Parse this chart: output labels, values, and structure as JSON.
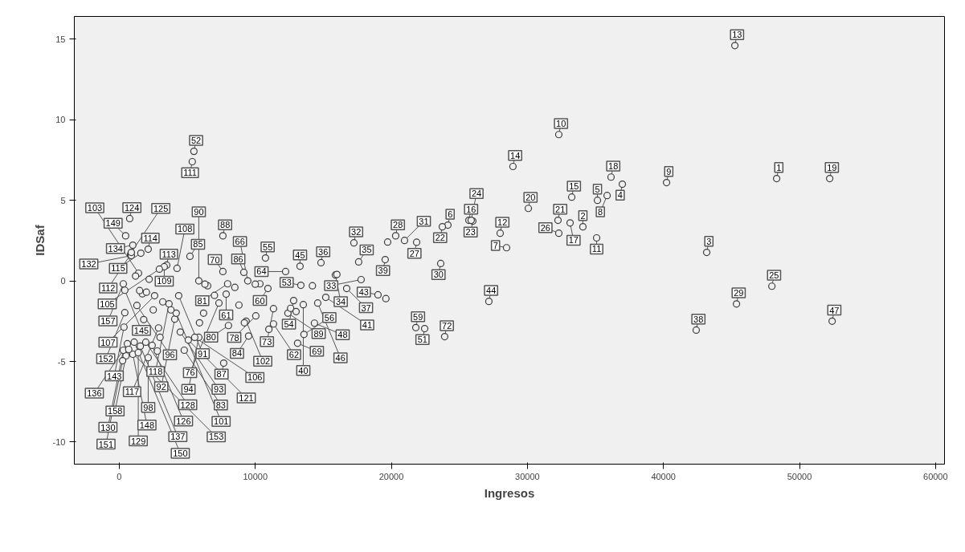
{
  "chart_data": {
    "type": "scatter",
    "xlabel": "Ingresos",
    "ylabel": "IDSaf",
    "xlim": [
      -3300,
      60660
    ],
    "ylim": [
      -11.37,
      16.41
    ],
    "xticks": [
      0,
      10000,
      20000,
      30000,
      40000,
      50000,
      60000
    ],
    "yticks": [
      -10,
      -5,
      0,
      5,
      10,
      15
    ],
    "grid": false,
    "marker": "circle",
    "series": [
      {
        "color": "#3c3c3c",
        "x": [
          45250,
          52220,
          48320,
          40230,
          43180,
          45370,
          47970,
          42410,
          52400,
          32310,
          28940,
          30070,
          36150,
          36980,
          33260,
          35150,
          35860,
          34080,
          32250,
          33140,
          32310,
          35090,
          28470,
          28000,
          24160,
          23750,
          25700,
          25990,
          25870,
          20320,
          21860,
          20970,
          19550,
          19730,
          23630,
          27170,
          19020,
          21800,
          22450,
          23920,
          17250,
          14830,
          13290,
          17600,
          17780,
          15890,
          16720,
          13350,
          10750,
          12230,
          10930,
          12820,
          7620,
          9160,
          9450,
          7620,
          7970,
          7860,
          11340,
          10040,
          8030,
          9510,
          9330,
          7680,
          12400,
          11340,
          13110,
          13580,
          14350,
          13530,
          15180,
          14590,
          5490,
          5370,
          770,
          470,
          2130,
          1000,
          3490,
          1590,
          3310,
          5200,
          4250,
          830,
          890,
          890,
          2950,
          5850,
          300,
          1420,
          410,
          2600,
          4370,
          1300,
          410,
          3660,
          7330,
          4080,
          5850,
          350,
          2890,
          4490,
          2130,
          600,
          500,
          300,
          1000,
          1950,
          2420,
          4780,
          5550,
          1400,
          5080,
          4190,
          1550,
          250,
          1100,
          700,
          10340,
          16000,
          11000,
          12600,
          13000,
          6500,
          6300,
          7000,
          6200,
          2200,
          1700,
          1500,
          2000,
          1200,
          2500,
          3200,
          3800,
          1800,
          2800,
          3000,
          5900,
          8500,
          8800,
          9200,
          14200,
          19600,
          10000
        ],
        "values": [
          14.6,
          6.35,
          6.35,
          6.1,
          1.77,
          -1.43,
          -0.33,
          -3.05,
          -2.5,
          9.08,
          7.1,
          4.5,
          6.44,
          6.0,
          5.2,
          5.0,
          5.3,
          3.36,
          3.76,
          3.6,
          2.96,
          2.67,
          2.06,
          2.96,
          3.46,
          3.36,
          3.76,
          3.71,
          3.76,
          2.8,
          2.4,
          2.51,
          1.32,
          2.41,
          1.08,
          -1.27,
          -0.86,
          -2.9,
          -2.96,
          -3.46,
          2.36,
          1.13,
          0.91,
          1.18,
          0.08,
          0.37,
          -0.47,
          -0.27,
          1.42,
          0.58,
          -0.47,
          -1.22,
          2.8,
          0.53,
          0,
          0.58,
          -0.18,
          -0.82,
          -1.72,
          -2.17,
          -2.77,
          -3.42,
          -2.5,
          -5.1,
          -2.0,
          -2.67,
          -3.87,
          -3.32,
          -2.62,
          -1.47,
          -1.02,
          -1.37,
          8.04,
          7.4,
          3.87,
          2.8,
          1.97,
          2.22,
          0.98,
          1.72,
          0.88,
          1.53,
          0.78,
          1.63,
          1.57,
          1.77,
          0.73,
          0,
          -0.18,
          0.48,
          -0.58,
          -0.92,
          -0.92,
          -1.52,
          -1.97,
          -1.42,
          -1.37,
          -2.37,
          -3.5,
          -2.87,
          -2.92,
          -3.17,
          -4.76,
          -3.9,
          -4.65,
          -4.3,
          -4.55,
          -3.8,
          -4.0,
          -4.3,
          -3.5,
          -4.45,
          -3.67,
          -2.0,
          -4.05,
          -4.95,
          -3.8,
          -4.25,
          -0.18,
          0.4,
          -3.0,
          -1.7,
          -1.9,
          -0.3,
          -0.2,
          -0.9,
          -2.0,
          0.1,
          -0.8,
          -0.6,
          -0.7,
          0.3,
          -1.8,
          -1.3,
          -1.8,
          -2.4,
          -4.35,
          -3.5,
          -2.6,
          -0.4,
          -1.5,
          -2.6,
          -0.3,
          -1.1,
          -0.2
        ]
      }
    ],
    "annotations": [
      {
        "text": "13",
        "x": 45250,
        "y": 14.6
      },
      {
        "text": "19",
        "x": 52220,
        "y": 6.35
      },
      {
        "text": "1",
        "x": 48320,
        "y": 6.35
      },
      {
        "text": "9",
        "x": 40230,
        "y": 6.1
      },
      {
        "text": "3",
        "x": 43180,
        "y": 1.77
      },
      {
        "text": "29",
        "x": 45370,
        "y": -1.43
      },
      {
        "text": "25",
        "x": 47970,
        "y": -0.33
      },
      {
        "text": "38",
        "x": 42410,
        "y": -3.05
      },
      {
        "text": "47",
        "x": 52400,
        "y": -2.5
      },
      {
        "text": "10",
        "x": 32310,
        "y": 9.08
      },
      {
        "text": "14",
        "x": 28940,
        "y": 7.1
      },
      {
        "text": "20",
        "x": 30070,
        "y": 4.5
      },
      {
        "text": "18",
        "x": 36150,
        "y": 6.44
      },
      {
        "text": "4",
        "x": 36980,
        "y": 6.0
      },
      {
        "text": "15",
        "x": 33260,
        "y": 5.2
      },
      {
        "text": "5",
        "x": 35150,
        "y": 5.0
      },
      {
        "text": "8",
        "x": 35860,
        "y": 5.3
      },
      {
        "text": "2",
        "x": 34080,
        "y": 3.36
      },
      {
        "text": "21",
        "x": 32250,
        "y": 3.76
      },
      {
        "text": "17",
        "x": 33140,
        "y": 3.6
      },
      {
        "text": "26",
        "x": 32310,
        "y": 2.96
      },
      {
        "text": "11",
        "x": 35090,
        "y": 2.67
      },
      {
        "text": "7",
        "x": 28470,
        "y": 2.06
      },
      {
        "text": "12",
        "x": 28000,
        "y": 2.96
      },
      {
        "text": "6",
        "x": 24160,
        "y": 3.46
      },
      {
        "text": "22",
        "x": 23750,
        "y": 3.36
      },
      {
        "text": "16",
        "x": 25700,
        "y": 3.76
      },
      {
        "text": "23",
        "x": 25990,
        "y": 3.71
      },
      {
        "text": "24",
        "x": 25870,
        "y": 3.76
      },
      {
        "text": "28",
        "x": 20320,
        "y": 2.8
      },
      {
        "text": "27",
        "x": 21860,
        "y": 2.4
      },
      {
        "text": "31",
        "x": 20970,
        "y": 2.51
      },
      {
        "text": "39",
        "x": 19550,
        "y": 1.32
      },
      {
        "text": "30",
        "x": 23630,
        "y": 1.08
      },
      {
        "text": "44",
        "x": 27170,
        "y": -1.27
      },
      {
        "text": "43",
        "x": 19020,
        "y": -0.86
      },
      {
        "text": "59",
        "x": 21800,
        "y": -2.9
      },
      {
        "text": "51",
        "x": 22450,
        "y": -2.96
      },
      {
        "text": "72",
        "x": 23920,
        "y": -3.46
      },
      {
        "text": "32",
        "x": 17250,
        "y": 2.36
      },
      {
        "text": "36",
        "x": 14830,
        "y": 1.13
      },
      {
        "text": "45",
        "x": 13290,
        "y": 0.91
      },
      {
        "text": "35",
        "x": 17600,
        "y": 1.18
      },
      {
        "text": "33",
        "x": 17780,
        "y": 0.08
      },
      {
        "text": "34",
        "x": 15890,
        "y": 0.37
      },
      {
        "text": "37",
        "x": 16720,
        "y": -0.47
      },
      {
        "text": "53",
        "x": 13350,
        "y": -0.27
      },
      {
        "text": "55",
        "x": 10750,
        "y": 1.42
      },
      {
        "text": "64",
        "x": 12230,
        "y": 0.58
      },
      {
        "text": "60",
        "x": 10930,
        "y": -0.47
      },
      {
        "text": "54",
        "x": 12820,
        "y": -1.22
      },
      {
        "text": "88",
        "x": 7620,
        "y": 2.8
      },
      {
        "text": "86",
        "x": 9160,
        "y": 0.53
      },
      {
        "text": "66",
        "x": 9450,
        "y": 0
      },
      {
        "text": "70",
        "x": 7620,
        "y": 0.58
      },
      {
        "text": "81",
        "x": 7970,
        "y": -0.18
      },
      {
        "text": "61",
        "x": 7860,
        "y": -0.82
      },
      {
        "text": "73",
        "x": 11340,
        "y": -1.72
      },
      {
        "text": "78",
        "x": 10040,
        "y": -2.17
      },
      {
        "text": "80",
        "x": 8030,
        "y": -2.77
      },
      {
        "text": "84",
        "x": 9510,
        "y": -3.42
      },
      {
        "text": "102",
        "x": 9330,
        "y": -2.5
      },
      {
        "text": "87",
        "x": 7680,
        "y": -5.1
      },
      {
        "text": "89",
        "x": 12400,
        "y": -2.0
      },
      {
        "text": "62",
        "x": 11340,
        "y": -2.67
      },
      {
        "text": "69",
        "x": 13110,
        "y": -3.87
      },
      {
        "text": "56",
        "x": 13580,
        "y": -3.32
      },
      {
        "text": "48",
        "x": 14350,
        "y": -2.62
      },
      {
        "text": "40",
        "x": 13530,
        "y": -1.47
      },
      {
        "text": "41",
        "x": 15180,
        "y": -1.02
      },
      {
        "text": "46",
        "x": 14590,
        "y": -1.37
      },
      {
        "text": "52",
        "x": 5490,
        "y": 8.04
      },
      {
        "text": "111",
        "x": 5370,
        "y": 7.4
      },
      {
        "text": "124",
        "x": 770,
        "y": 3.87
      },
      {
        "text": "149",
        "x": 470,
        "y": 2.8
      },
      {
        "text": "114",
        "x": 2130,
        "y": 1.97
      },
      {
        "text": "134",
        "x": 1000,
        "y": 2.22
      },
      {
        "text": "113",
        "x": 3490,
        "y": 0.98
      },
      {
        "text": "115",
        "x": 1590,
        "y": 1.72
      },
      {
        "text": "109",
        "x": 3310,
        "y": 0.88
      },
      {
        "text": "85",
        "x": 5200,
        "y": 1.53
      },
      {
        "text": "108",
        "x": 4250,
        "y": 0.78
      },
      {
        "text": "112",
        "x": 830,
        "y": 1.63
      },
      {
        "text": "132",
        "x": 890,
        "y": 1.57
      },
      {
        "text": "125",
        "x": 890,
        "y": 1.77
      },
      {
        "text": "105",
        "x": 2950,
        "y": 0.73
      },
      {
        "text": "90",
        "x": 5850,
        "y": 0
      },
      {
        "text": "157",
        "x": 300,
        "y": -0.18
      },
      {
        "text": "103",
        "x": 1420,
        "y": 0.48
      },
      {
        "text": "145",
        "x": 410,
        "y": -0.58
      },
      {
        "text": "107",
        "x": 2600,
        "y": -0.92
      },
      {
        "text": "91",
        "x": 4370,
        "y": -0.92
      },
      {
        "text": "96",
        "x": 1300,
        "y": -1.52
      },
      {
        "text": "152",
        "x": 410,
        "y": -1.97
      },
      {
        "text": "118",
        "x": 3660,
        "y": -1.42
      },
      {
        "text": "76",
        "x": 7330,
        "y": -1.37
      },
      {
        "text": "92",
        "x": 4080,
        "y": -2.37
      },
      {
        "text": "94",
        "x": 5850,
        "y": -3.5
      },
      {
        "text": "143",
        "x": 350,
        "y": -2.87
      },
      {
        "text": "117",
        "x": 2890,
        "y": -2.92
      },
      {
        "text": "93",
        "x": 4490,
        "y": -3.17
      },
      {
        "text": "98",
        "x": 2130,
        "y": -4.76
      },
      {
        "text": "136",
        "x": 600,
        "y": -3.9
      },
      {
        "text": "158",
        "x": 500,
        "y": -4.65
      },
      {
        "text": "130",
        "x": 300,
        "y": -4.3
      },
      {
        "text": "148",
        "x": 1000,
        "y": -4.55
      },
      {
        "text": "128",
        "x": 1950,
        "y": -3.8
      },
      {
        "text": "126",
        "x": 2420,
        "y": -4.0
      },
      {
        "text": "83",
        "x": 4780,
        "y": -4.3
      },
      {
        "text": "106",
        "x": 5550,
        "y": -3.5
      },
      {
        "text": "129",
        "x": 1400,
        "y": -4.45
      },
      {
        "text": "121",
        "x": 5080,
        "y": -3.67
      },
      {
        "text": "101",
        "x": 4190,
        "y": -2.0
      },
      {
        "text": "137",
        "x": 1550,
        "y": -4.05
      },
      {
        "text": "151",
        "x": 250,
        "y": -4.95
      },
      {
        "text": "150",
        "x": 1100,
        "y": -3.8
      },
      {
        "text": "153",
        "x": 700,
        "y": -4.25
      }
    ]
  }
}
